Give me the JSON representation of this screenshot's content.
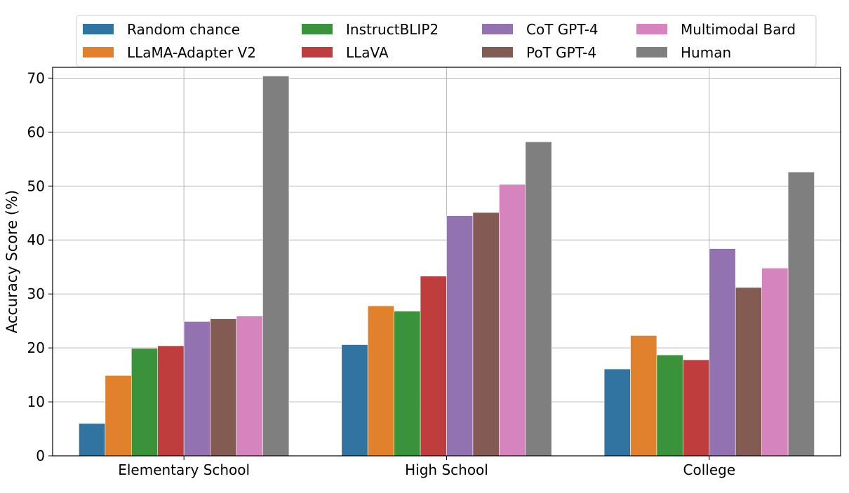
{
  "chart_data": {
    "type": "bar",
    "title": "",
    "xlabel": "",
    "ylabel": "Accuracy Score (%)",
    "ylim": [
      0,
      72
    ],
    "yticks": [
      0,
      10,
      20,
      30,
      40,
      50,
      60,
      70
    ],
    "grid": true,
    "legend_position": "top-center",
    "categories": [
      "Elementary School",
      "High School",
      "College"
    ],
    "series": [
      {
        "name": "Random chance",
        "color": "#3274a1",
        "values": [
          6.0,
          20.6,
          16.1
        ]
      },
      {
        "name": "LLaMA-Adapter V2",
        "color": "#e1812c",
        "values": [
          14.9,
          27.8,
          22.3
        ]
      },
      {
        "name": "InstructBLIP2",
        "color": "#3a923a",
        "values": [
          19.9,
          26.8,
          18.7
        ]
      },
      {
        "name": "LLaVA",
        "color": "#c03d3e",
        "values": [
          20.4,
          33.3,
          17.8
        ]
      },
      {
        "name": "CoT GPT-4",
        "color": "#9372b2",
        "values": [
          24.9,
          44.5,
          38.4
        ]
      },
      {
        "name": "PoT GPT-4",
        "color": "#845b53",
        "values": [
          25.4,
          45.1,
          31.2
        ]
      },
      {
        "name": "Multimodal Bard",
        "color": "#d684bd",
        "values": [
          25.9,
          50.3,
          34.8
        ]
      },
      {
        "name": "Human",
        "color": "#7f7f7f",
        "values": [
          70.4,
          58.2,
          52.6
        ]
      }
    ]
  }
}
